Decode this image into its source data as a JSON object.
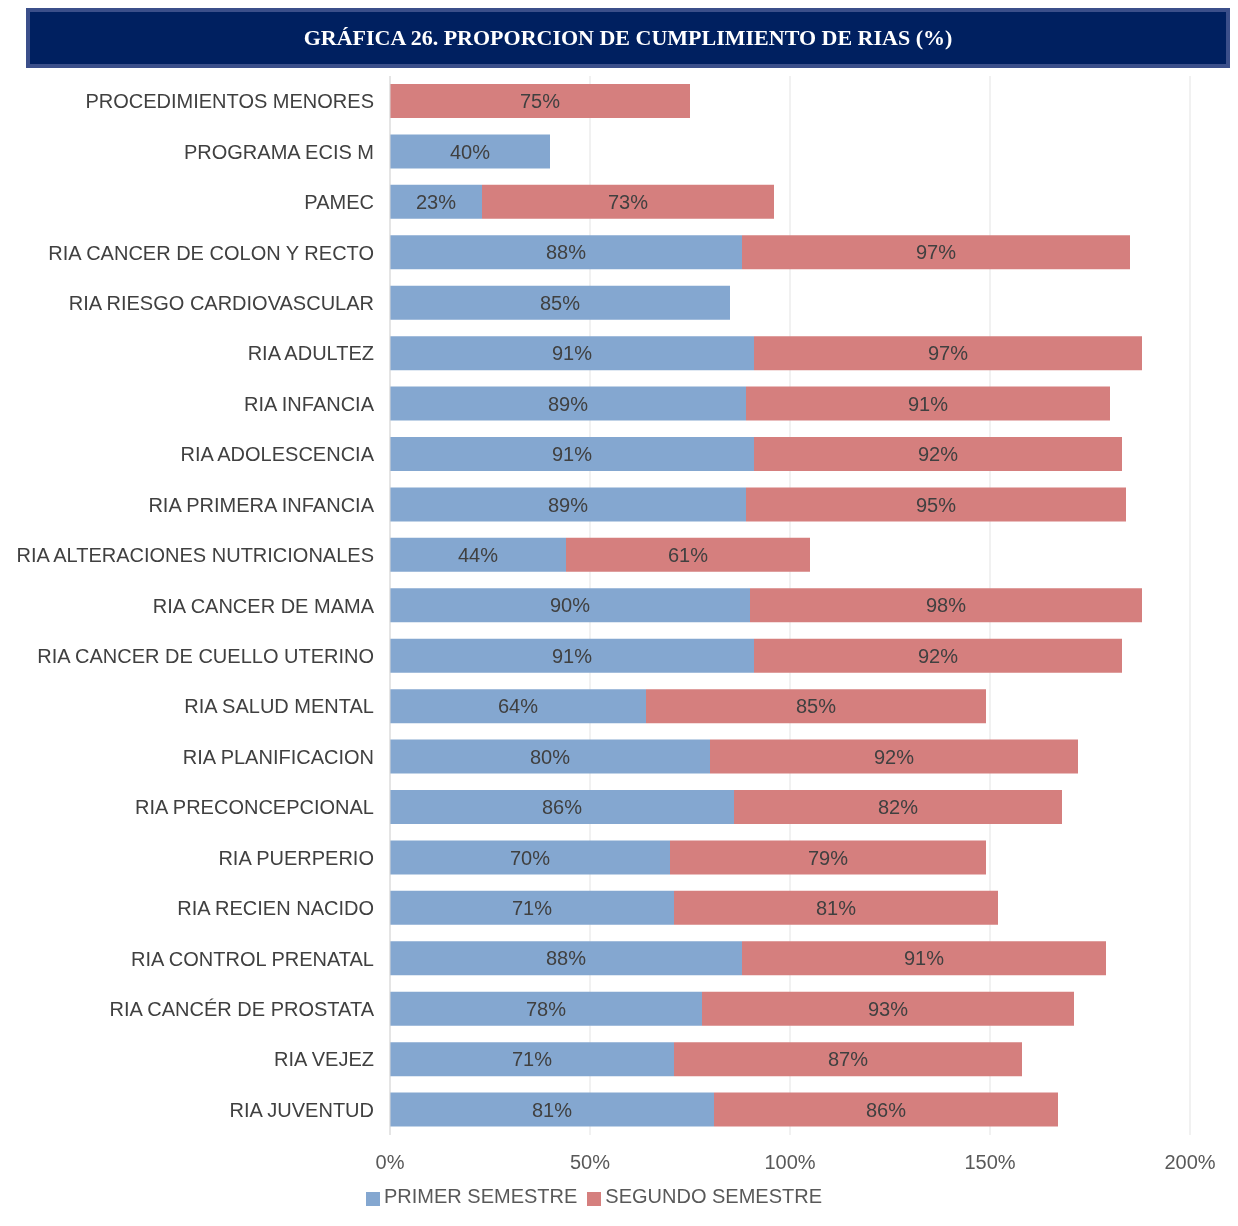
{
  "chart_data": {
    "type": "bar",
    "title": "GRÁFICA 26. PROPORCION DE CUMPLIMIENTO DE RIAS (%)",
    "orientation": "horizontal",
    "stacked": true,
    "categories": [
      "PROCEDIMIENTOS MENORES",
      "PROGRAMA ECIS M",
      "PAMEC",
      "RIA CANCER DE COLON Y RECTO",
      "RIA RIESGO CARDIOVASCULAR",
      "RIA ADULTEZ",
      "RIA INFANCIA",
      "RIA ADOLESCENCIA",
      "RIA PRIMERA INFANCIA",
      "RIA ALTERACIONES NUTRICIONALES",
      "RIA CANCER DE MAMA",
      "RIA CANCER DE CUELLO UTERINO",
      "RIA SALUD MENTAL",
      "RIA PLANIFICACION",
      "RIA PRECONCEPCIONAL",
      "RIA PUERPERIO",
      "RIA RECIEN NACIDO",
      "RIA CONTROL PRENATAL",
      "RIA CANCÉR DE PROSTATA",
      "RIA VEJEZ",
      "RIA JUVENTUD"
    ],
    "series": [
      {
        "name": "PRIMER SEMESTRE",
        "color": "#84a7d0",
        "values": [
          null,
          40,
          23,
          88,
          85,
          91,
          89,
          91,
          89,
          44,
          90,
          91,
          64,
          80,
          86,
          70,
          71,
          88,
          78,
          71,
          81
        ],
        "value_labels": [
          null,
          "40%",
          "23%",
          "88%",
          "85%",
          "91%",
          "89%",
          "91%",
          "89%",
          "44%",
          "90%",
          "91%",
          "64%",
          "80%",
          "86%",
          "70%",
          "71%",
          "88%",
          "78%",
          "71%",
          "81%"
        ]
      },
      {
        "name": "SEGUNDO SEMESTRE",
        "color": "#d57f7e",
        "values": [
          75,
          null,
          73,
          97,
          null,
          97,
          91,
          92,
          95,
          61,
          98,
          92,
          85,
          92,
          82,
          79,
          81,
          91,
          93,
          87,
          86
        ],
        "value_labels": [
          "75%",
          null,
          "73%",
          "97%",
          null,
          "97%",
          "91%",
          "92%",
          "95%",
          "61%",
          "98%",
          "92%",
          "85%",
          "92%",
          "82%",
          "79%",
          "81%",
          "91%",
          "93%",
          "87%",
          "86%"
        ]
      }
    ],
    "xlim": [
      0,
      200
    ],
    "xticks": [
      {
        "value": 0,
        "label": "0%"
      },
      {
        "value": 50,
        "label": "50%"
      },
      {
        "value": 100,
        "label": "100%"
      },
      {
        "value": 150,
        "label": "150%"
      },
      {
        "value": 200,
        "label": "200%"
      }
    ],
    "grid": "x",
    "legend": "bottom"
  }
}
